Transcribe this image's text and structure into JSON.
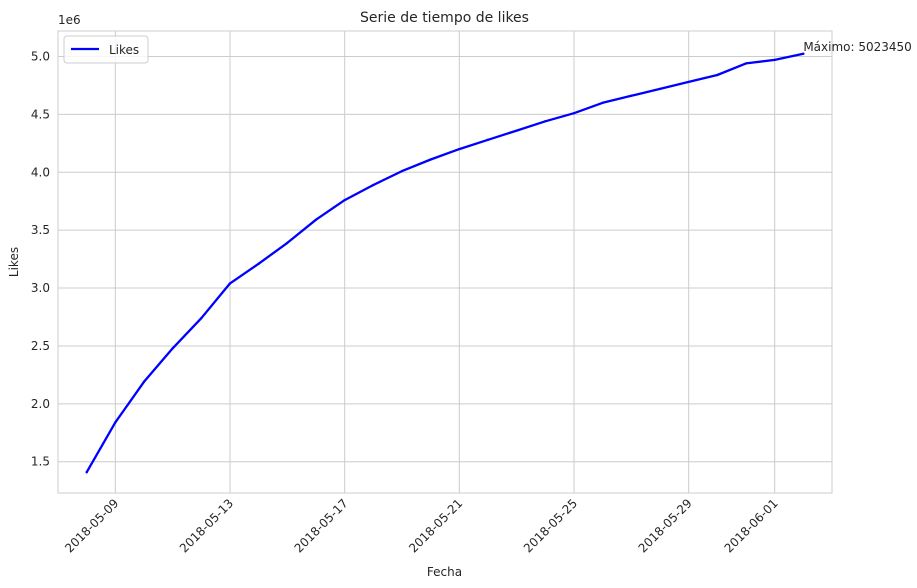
{
  "chart_data": {
    "type": "line",
    "title": "Serie de tiempo de likes",
    "xlabel": "Fecha",
    "ylabel": "Likes",
    "y_offset_label": "1e6",
    "x_ticks": [
      "2018-05-09",
      "2018-05-13",
      "2018-05-17",
      "2018-05-21",
      "2018-05-25",
      "2018-05-29",
      "2018-06-01"
    ],
    "y_ticks": [
      1.5,
      2.0,
      2.5,
      3.0,
      3.5,
      4.0,
      4.5,
      5.0
    ],
    "y_tick_labels": [
      "1.5",
      "2.0",
      "2.5",
      "3.0",
      "3.5",
      "4.0",
      "4.5",
      "5.0"
    ],
    "ylim": [
      1.23,
      5.22
    ],
    "xlim": [
      "2018-05-07",
      "2018-06-03"
    ],
    "grid": true,
    "legend": {
      "position": "upper left"
    },
    "annotation": {
      "text": "Máximo: 5023450",
      "x": "2018-06-02",
      "y": 5.02345
    },
    "series": [
      {
        "name": "Likes",
        "color": "#0000ff",
        "points": [
          {
            "x": "2018-05-08",
            "y": 1.41
          },
          {
            "x": "2018-05-09",
            "y": 1.84
          },
          {
            "x": "2018-05-10",
            "y": 2.19
          },
          {
            "x": "2018-05-11",
            "y": 2.48
          },
          {
            "x": "2018-05-12",
            "y": 2.74
          },
          {
            "x": "2018-05-13",
            "y": 3.04
          },
          {
            "x": "2018-05-14",
            "y": 3.21
          },
          {
            "x": "2018-05-15",
            "y": 3.39
          },
          {
            "x": "2018-05-16",
            "y": 3.59
          },
          {
            "x": "2018-05-17",
            "y": 3.76
          },
          {
            "x": "2018-05-18",
            "y": 3.89
          },
          {
            "x": "2018-05-19",
            "y": 4.01
          },
          {
            "x": "2018-05-20",
            "y": 4.11
          },
          {
            "x": "2018-05-21",
            "y": 4.2
          },
          {
            "x": "2018-05-22",
            "y": 4.28
          },
          {
            "x": "2018-05-23",
            "y": 4.36
          },
          {
            "x": "2018-05-24",
            "y": 4.44
          },
          {
            "x": "2018-05-25",
            "y": 4.51
          },
          {
            "x": "2018-05-26",
            "y": 4.6
          },
          {
            "x": "2018-05-27",
            "y": 4.66
          },
          {
            "x": "2018-05-28",
            "y": 4.72
          },
          {
            "x": "2018-05-29",
            "y": 4.78
          },
          {
            "x": "2018-05-30",
            "y": 4.84
          },
          {
            "x": "2018-05-31",
            "y": 4.94
          },
          {
            "x": "2018-06-01",
            "y": 4.97
          },
          {
            "x": "2018-06-02",
            "y": 5.02345
          }
        ]
      }
    ]
  }
}
